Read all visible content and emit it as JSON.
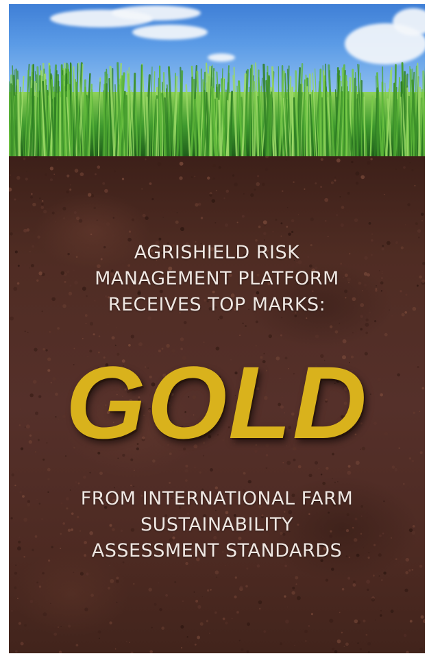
{
  "headline": {
    "lines": [
      "AGRISHIELD RISK",
      "MANAGEMENT PLATFORM",
      "RECEIVES TOP MARKS:"
    ]
  },
  "award": {
    "text": "GOLD",
    "color": "#d9b21c"
  },
  "footer": {
    "lines": [
      "FROM INTERNATIONAL FARM",
      "SUSTAINABILITY",
      "ASSESSMENT STANDARDS"
    ]
  },
  "colors": {
    "sky": "#5b9be6",
    "grass": "#3f9a2e",
    "soil": "#4f2c23",
    "text": "#efe7e2"
  }
}
